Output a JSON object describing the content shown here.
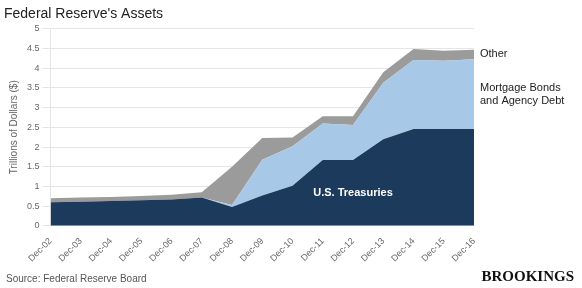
{
  "chart_data": {
    "type": "area",
    "title": "Federal Reserve's Assets",
    "ylabel": "Trillions of Dollars ($)",
    "annotations": [
      "Source: Federal Reserve Board",
      "BROOKINGS"
    ],
    "categories": [
      "Dec-02",
      "Dec-03",
      "Dec-04",
      "Dec-05",
      "Dec-06",
      "Dec-07",
      "Dec-08",
      "Dec-09",
      "Dec-10",
      "Dec-11",
      "Dec-12",
      "Dec-13",
      "Dec-14",
      "Dec-15",
      "Dec-16"
    ],
    "series": [
      {
        "name": "U.S. Treasuries",
        "color": "#1b3a5c",
        "values": [
          0.6,
          0.61,
          0.63,
          0.65,
          0.67,
          0.72,
          0.48,
          0.77,
          1.02,
          1.67,
          1.67,
          2.2,
          2.46,
          2.46,
          2.46
        ]
      },
      {
        "name": "Mortgage Bonds\nand Agency Debt",
        "color": "#a8c8e8",
        "values": [
          0.0,
          0.0,
          0.0,
          0.0,
          0.0,
          0.0,
          0.05,
          0.91,
          1.0,
          0.93,
          0.89,
          1.43,
          1.75,
          1.73,
          1.77
        ]
      },
      {
        "name": "Other",
        "color": "#9b9b9b",
        "values": [
          0.1,
          0.11,
          0.1,
          0.11,
          0.12,
          0.13,
          0.97,
          0.55,
          0.22,
          0.18,
          0.22,
          0.27,
          0.28,
          0.25,
          0.24
        ]
      }
    ],
    "stacked": true,
    "ylim": [
      0,
      5
    ],
    "yticks": [
      0,
      0.5,
      1,
      1.5,
      2,
      2.5,
      3,
      3.5,
      4,
      4.5,
      5
    ],
    "grid": true
  }
}
